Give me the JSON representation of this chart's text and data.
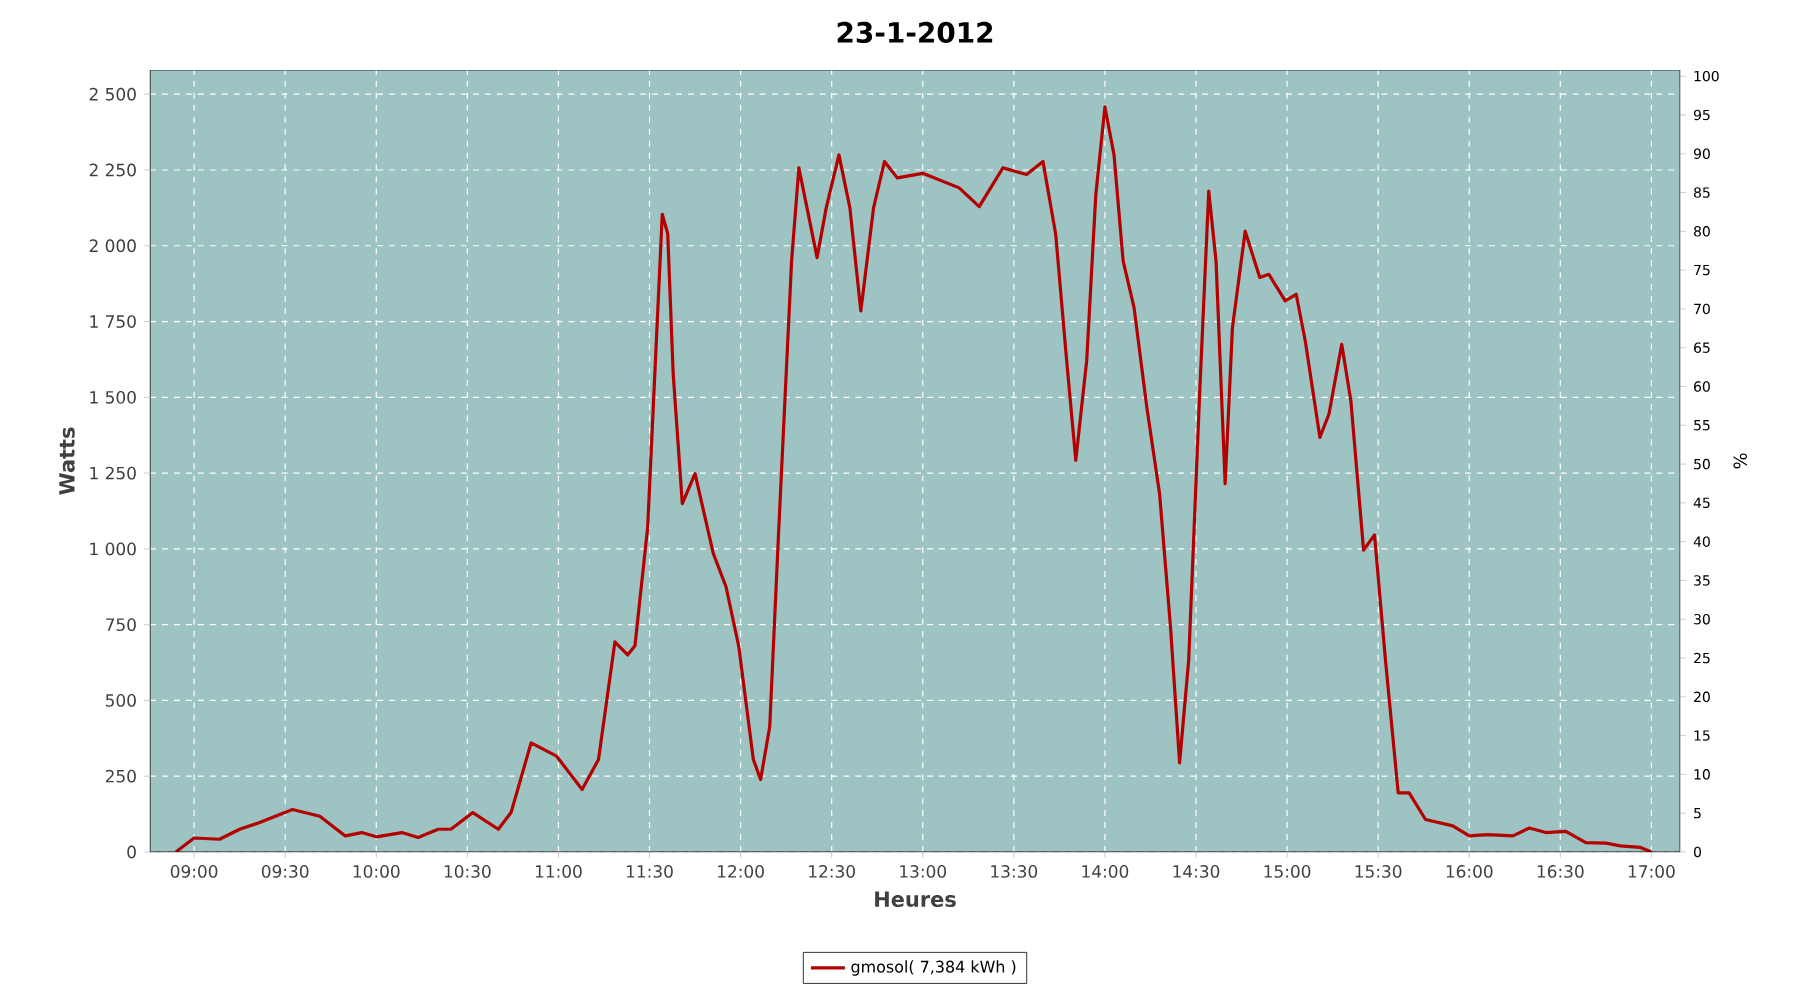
{
  "chart_data": {
    "type": "line",
    "title": "23-1-2012",
    "xlabel": "Heures",
    "ylabel": "Watts",
    "y2label": "%",
    "xlim": [
      8.758,
      17.157
    ],
    "ylim": [
      0,
      2580
    ],
    "y2lim": [
      0,
      100.8
    ],
    "xticks": [
      {
        "value": 9,
        "label": "09:00"
      },
      {
        "value": 9.5,
        "label": "09:30"
      },
      {
        "value": 10,
        "label": "10:00"
      },
      {
        "value": 10.5,
        "label": "10:30"
      },
      {
        "value": 11,
        "label": "11:00"
      },
      {
        "value": 11.5,
        "label": "11:30"
      },
      {
        "value": 12,
        "label": "12:00"
      },
      {
        "value": 12.5,
        "label": "12:30"
      },
      {
        "value": 13,
        "label": "13:00"
      },
      {
        "value": 13.5,
        "label": "13:30"
      },
      {
        "value": 14,
        "label": "14:00"
      },
      {
        "value": 14.5,
        "label": "14:30"
      },
      {
        "value": 15,
        "label": "15:00"
      },
      {
        "value": 15.5,
        "label": "15:30"
      },
      {
        "value": 16,
        "label": "16:00"
      },
      {
        "value": 16.5,
        "label": "16:30"
      },
      {
        "value": 17,
        "label": "17:00"
      }
    ],
    "yticks": [
      0,
      250,
      500,
      750,
      {
        "value": 1000,
        "label": "1 000"
      },
      {
        "value": 1250,
        "label": "1 250"
      },
      {
        "value": 1500,
        "label": "1 500"
      },
      {
        "value": 1750,
        "label": "1 750"
      },
      {
        "value": 2000,
        "label": "2 000"
      },
      {
        "value": 2250,
        "label": "2 250"
      },
      {
        "value": 2500,
        "label": "2 500"
      }
    ],
    "y2ticks": [
      0,
      5,
      10,
      15,
      20,
      25,
      30,
      35,
      40,
      45,
      50,
      55,
      60,
      65,
      70,
      75,
      80,
      85,
      90,
      95,
      100
    ],
    "grid": true,
    "legend": "bottom",
    "series": [
      {
        "name": "gmosol( 7,384 kWh )",
        "color": "#b30000",
        "x": [
          8.9,
          9.0,
          9.14,
          9.25,
          9.36,
          9.54,
          9.69,
          9.83,
          9.92,
          10.0,
          10.14,
          10.23,
          10.34,
          10.41,
          10.53,
          10.67,
          10.74,
          10.85,
          10.99,
          11.13,
          11.22,
          11.31,
          11.38,
          11.42,
          11.49,
          11.57,
          11.6,
          11.63,
          11.68,
          11.75,
          11.85,
          11.92,
          11.99,
          12.07,
          12.11,
          12.16,
          12.21,
          12.28,
          12.32,
          12.42,
          12.47,
          12.54,
          12.6,
          12.66,
          12.73,
          12.79,
          12.86,
          13.0,
          13.2,
          13.31,
          13.44,
          13.57,
          13.66,
          13.73,
          13.79,
          13.84,
          13.9,
          13.95,
          14.0,
          14.05,
          14.1,
          14.16,
          14.23,
          14.3,
          14.36,
          14.41,
          14.46,
          14.52,
          14.57,
          14.61,
          14.66,
          14.7,
          14.77,
          14.85,
          14.9,
          14.99,
          15.05,
          15.1,
          15.18,
          15.23,
          15.3,
          15.35,
          15.42,
          15.48,
          15.54,
          15.61,
          15.67,
          15.76,
          15.91,
          16.0,
          16.1,
          16.24,
          16.33,
          16.42,
          16.53,
          16.64,
          16.75,
          16.83,
          16.94,
          17.0
        ],
        "values": [
          0,
          46,
          42,
          75,
          97,
          140,
          118,
          53,
          64,
          50,
          64,
          48,
          75,
          75,
          130,
          75,
          130,
          360,
          316,
          206,
          305,
          693,
          650,
          680,
          1072,
          2104,
          2040,
          1577,
          1149,
          1248,
          985,
          875,
          678,
          305,
          239,
          414,
          1072,
          1950,
          2257,
          1961,
          2125,
          2300,
          2125,
          1785,
          2125,
          2278,
          2224,
          2239,
          2191,
          2129,
          2257,
          2235,
          2278,
          2037,
          1621,
          1292,
          1621,
          2169,
          2458,
          2300,
          1950,
          1796,
          1467,
          1182,
          743,
          294,
          634,
          1511,
          2180,
          1950,
          1215,
          1730,
          2048,
          1895,
          1906,
          1818,
          1840,
          1686,
          1368,
          1445,
          1675,
          1489,
          996,
          1046,
          634,
          195,
          195,
          107,
          86,
          53,
          57,
          53,
          79,
          64,
          68,
          31,
          29,
          20,
          15,
          0
        ]
      }
    ]
  }
}
